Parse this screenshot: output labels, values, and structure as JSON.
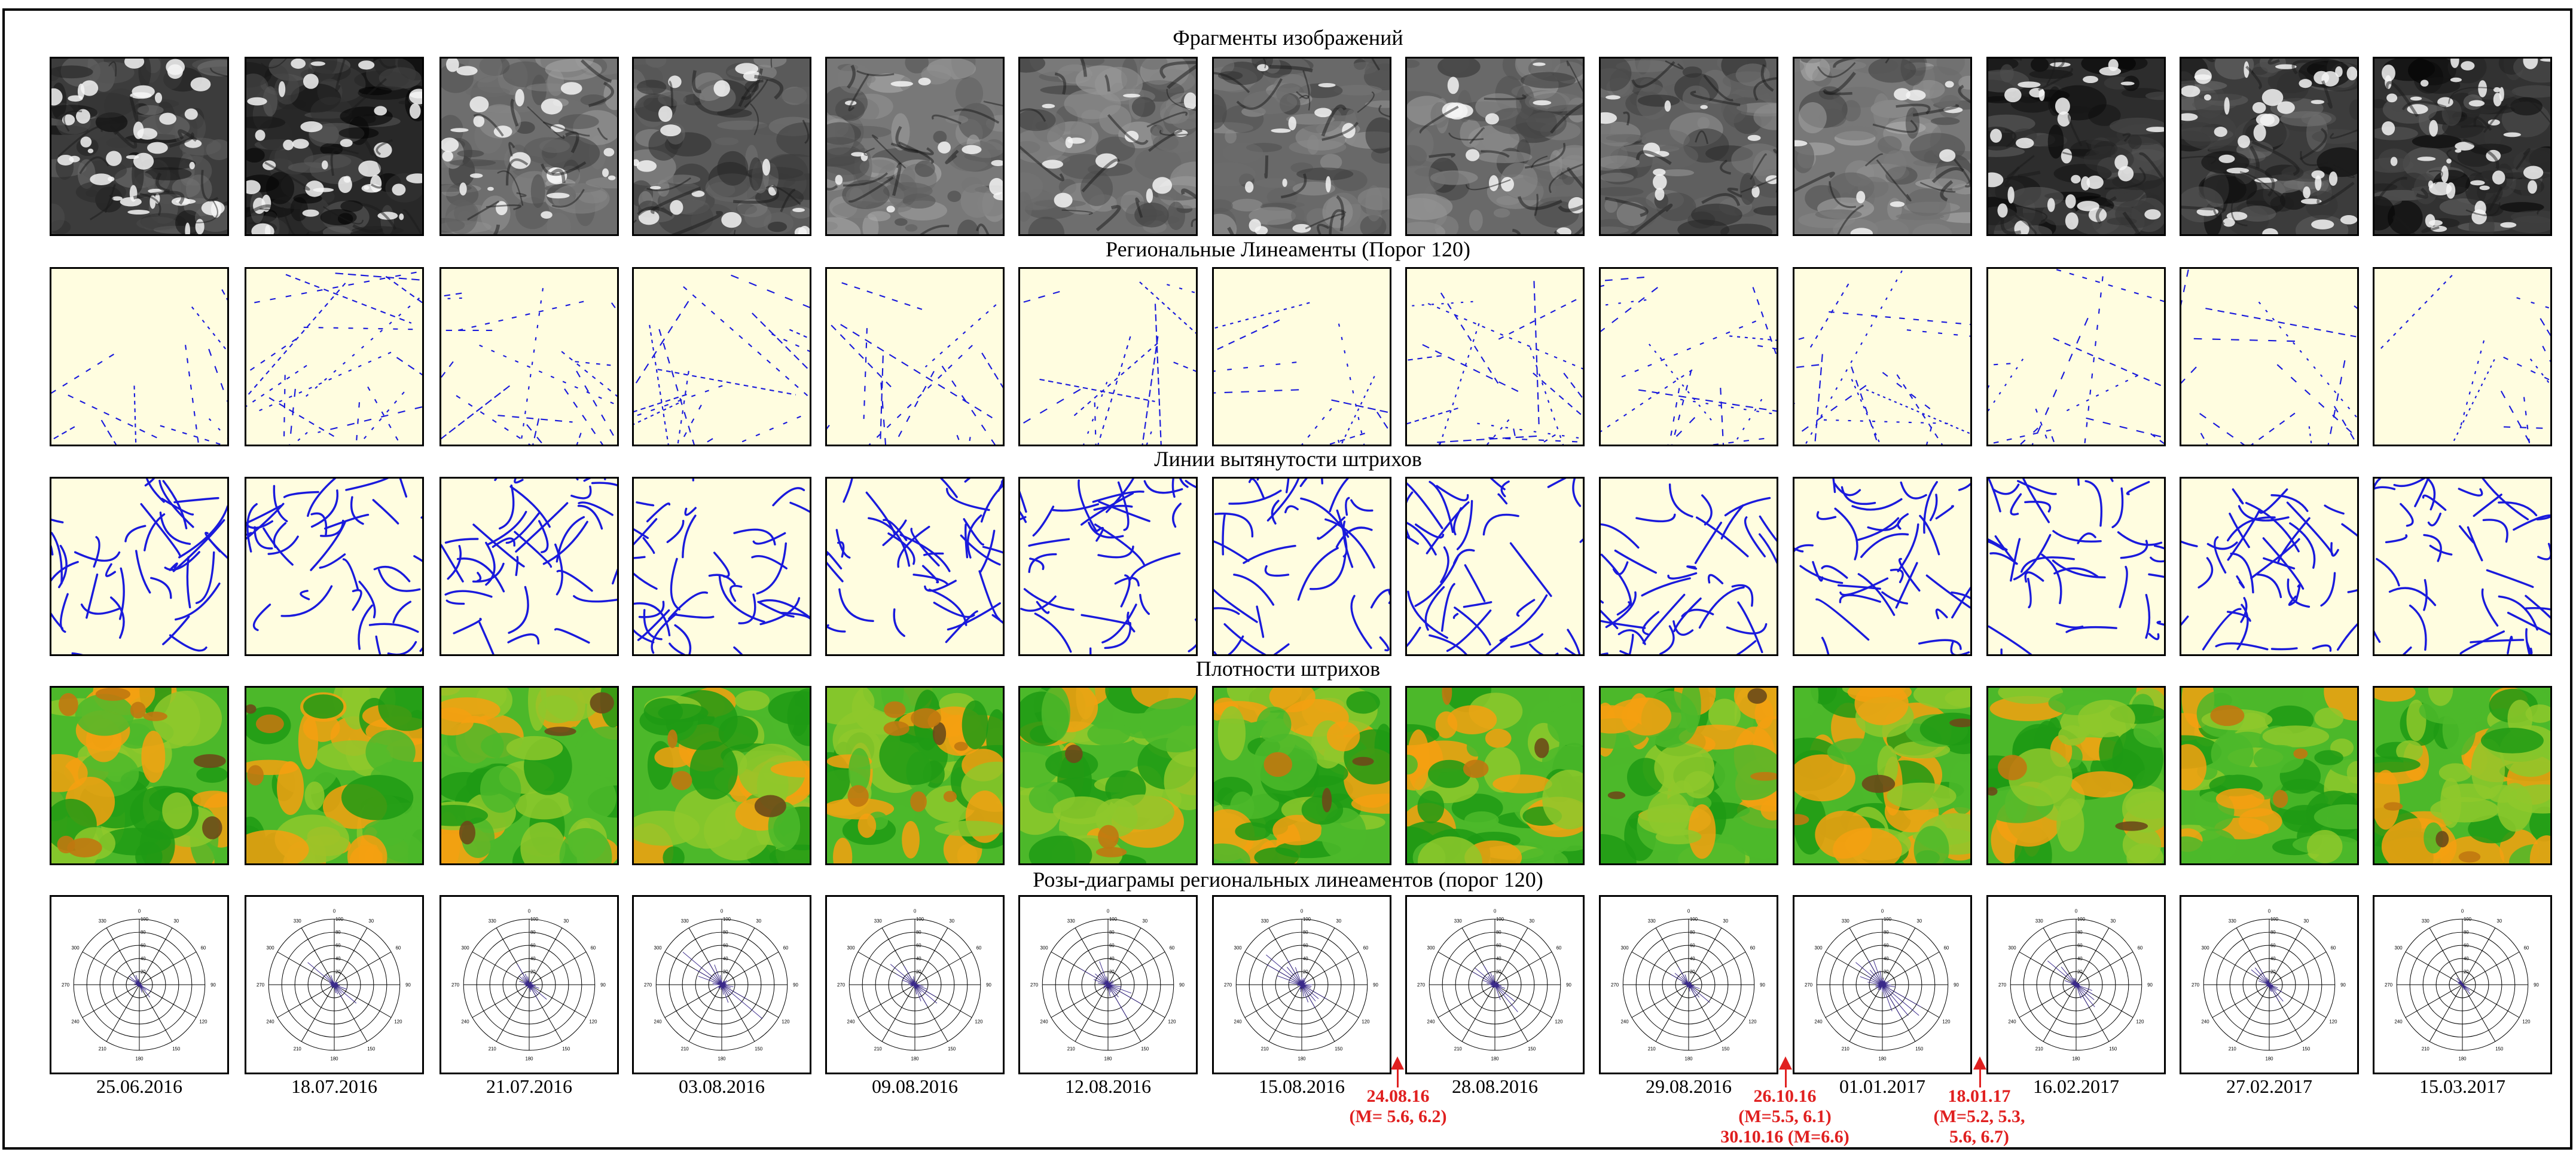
{
  "row_titles": {
    "images": "Фрагменты изображений",
    "lineaments": "Региональные Линеаменты (Порог 120)",
    "stroke_lines": "Линии вытянутости штрихов",
    "density": "Плотности штрихов",
    "roses": "Розы-диаграмы региональных линеаментов (порог 120)"
  },
  "dates": [
    "25.06.2016",
    "18.07.2016",
    "21.07.2016",
    "03.08.2016",
    "09.08.2016",
    "12.08.2016",
    "15.08.2016",
    "28.08.2016",
    "29.08.2016",
    "01.01.2017",
    "16.02.2017",
    "27.02.2017",
    "15.03.2017"
  ],
  "rose": {
    "radial_ticks": [
      "20",
      "40",
      "60",
      "80",
      "100"
    ],
    "angle_labels": [
      "0",
      "30",
      "60",
      "90",
      "120",
      "150",
      "180",
      "210",
      "240",
      "270",
      "300",
      "330"
    ],
    "rose_scale": [
      0.35,
      0.55,
      0.55,
      0.9,
      0.6,
      0.85,
      1.0,
      0.6,
      0.45,
      0.95,
      0.6,
      0.4,
      0.2
    ]
  },
  "events": [
    {
      "lines": [
        "24.08.16",
        "(M= 5.6, 6.2)"
      ]
    },
    {
      "lines": [
        "26.10.16",
        "(M=5.5, 6.1)",
        "30.10.16 (M=6.6)"
      ]
    },
    {
      "lines": [
        "18.01.17",
        "(M=5.2, 5.3,",
        "5.6, 6.7)"
      ]
    }
  ],
  "colors": {
    "lineament_bg": "#fffde0",
    "stroke_line": "#1a1adc",
    "rose_fill": "#3a2a8a",
    "event": "#e02020",
    "density_levels": [
      "#1e9a14",
      "#4cb82a",
      "#8ec82c",
      "#f4a010",
      "#c07810",
      "#6b4a18"
    ]
  }
}
